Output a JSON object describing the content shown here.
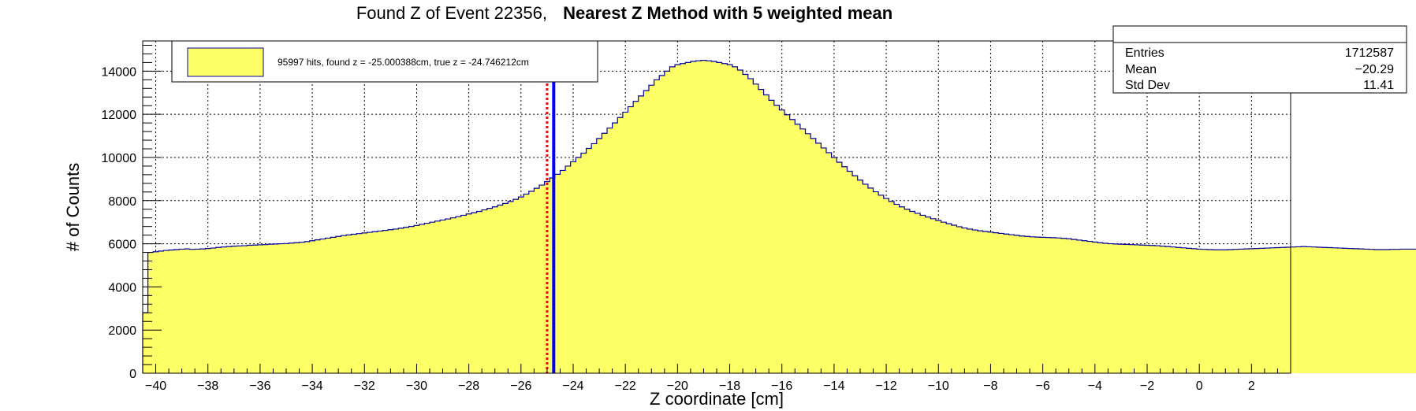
{
  "title": {
    "prefix": "Found Z of Event 22356,",
    "bold": "Nearest Z Method with 5 weighted mean"
  },
  "stats": {
    "rows": [
      {
        "label": "Entries",
        "value": "1712587"
      },
      {
        "label": "Mean",
        "value": "−20.29"
      },
      {
        "label": "Std Dev",
        "value": "11.41"
      }
    ]
  },
  "legend": {
    "text": "95997 hits, found z = -25.000388cm, true z = -24.746212cm",
    "swatch_color": "#ffff66"
  },
  "chart_data": {
    "type": "histogram",
    "xlabel": "Z coordinate [cm]",
    "ylabel": "# of Counts",
    "xlim": [
      -40.5,
      3.5
    ],
    "ylim": [
      0,
      15400
    ],
    "x_ticks": [
      -40,
      -38,
      -36,
      -34,
      -32,
      -30,
      -28,
      -26,
      -24,
      -22,
      -20,
      -18,
      -16,
      -14,
      -12,
      -10,
      -8,
      -6,
      -4,
      -2,
      0,
      2
    ],
    "y_ticks": [
      0,
      2000,
      4000,
      6000,
      8000,
      10000,
      12000,
      14000
    ],
    "grid": true,
    "fill_color": "#ffff66",
    "line_color": "#000099",
    "bin_width": 0.2,
    "bin_start": -40.5,
    "bin_counts": [
      2800,
      5600,
      5630,
      5660,
      5690,
      5710,
      5730,
      5750,
      5760,
      5740,
      5750,
      5760,
      5780,
      5800,
      5830,
      5850,
      5870,
      5890,
      5900,
      5910,
      5930,
      5940,
      5950,
      5960,
      5980,
      5990,
      6000,
      6010,
      6030,
      6050,
      6070,
      6100,
      6140,
      6180,
      6220,
      6260,
      6300,
      6340,
      6380,
      6410,
      6440,
      6470,
      6500,
      6530,
      6560,
      6590,
      6620,
      6650,
      6680,
      6720,
      6760,
      6800,
      6850,
      6900,
      6950,
      7000,
      7050,
      7100,
      7150,
      7200,
      7260,
      7320,
      7380,
      7440,
      7500,
      7570,
      7640,
      7710,
      7790,
      7870,
      7960,
      8060,
      8170,
      8300,
      8430,
      8570,
      8720,
      8880,
      9050,
      9220,
      9400,
      9600,
      9800,
      10000,
      10200,
      10420,
      10640,
      10880,
      11120,
      11360,
      11600,
      11850,
      12100,
      12350,
      12600,
      12850,
      13100,
      13350,
      13600,
      13800,
      14000,
      14200,
      14300,
      14350,
      14400,
      14450,
      14480,
      14500,
      14480,
      14450,
      14400,
      14350,
      14300,
      14200,
      14050,
      13850,
      13650,
      13400,
      13150,
      12900,
      12650,
      12420,
      12200,
      11980,
      11760,
      11540,
      11320,
      11100,
      10880,
      10660,
      10440,
      10220,
      10000,
      9780,
      9570,
      9360,
      9150,
      8950,
      8760,
      8580,
      8410,
      8250,
      8100,
      7960,
      7830,
      7710,
      7600,
      7500,
      7410,
      7320,
      7240,
      7160,
      7080,
      7000,
      6930,
      6860,
      6790,
      6730,
      6680,
      6640,
      6600,
      6570,
      6540,
      6510,
      6480,
      6450,
      6420,
      6390,
      6360,
      6340,
      6320,
      6310,
      6300,
      6290,
      6280,
      6270,
      6250,
      6230,
      6200,
      6170,
      6140,
      6110,
      6080,
      6050,
      6020,
      6000,
      5990,
      5980,
      5970,
      5960,
      5950,
      5940,
      5930,
      5920,
      5910,
      5890,
      5870,
      5850,
      5830,
      5810,
      5790,
      5770,
      5750,
      5740,
      5730,
      5720,
      5720,
      5720,
      5730,
      5740,
      5750,
      5760,
      5770,
      5780,
      5790,
      5800,
      5810,
      5820,
      5830,
      5840,
      5850,
      5860,
      5870,
      5860,
      5850,
      5840,
      5830,
      5820,
      5810,
      5800,
      5790,
      5780,
      5770,
      5760,
      5750,
      5740,
      5730,
      5730,
      5730,
      5740,
      5740,
      5750,
      5750,
      5750,
      5750,
      5740,
      5730,
      5720,
      5710,
      5690,
      5670,
      5650,
      5620,
      5580,
      2800
    ],
    "markers": [
      {
        "name": "found z",
        "x": -25.000388,
        "color": "#ff0000",
        "style": "dotted"
      },
      {
        "name": "true z",
        "x": -24.746212,
        "color": "#0000ff",
        "style": "solid"
      }
    ]
  }
}
